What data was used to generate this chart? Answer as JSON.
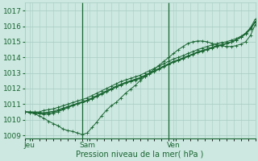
{
  "xlabel": "Pression niveau de la mer( hPa )",
  "bg_color": "#cce8e0",
  "grid_color": "#a8ccC4",
  "line_color": "#1a6632",
  "ylim": [
    1008.8,
    1017.5
  ],
  "xlim": [
    0,
    96
  ],
  "yticks": [
    1009,
    1010,
    1011,
    1012,
    1013,
    1014,
    1015,
    1016,
    1017
  ],
  "xtick_positions": [
    2,
    26,
    62
  ],
  "xtick_labels": [
    "Jeu",
    "Sam",
    "Ven"
  ],
  "vline_positions": [
    24,
    60
  ],
  "x_hours": [
    0,
    2,
    4,
    6,
    8,
    10,
    12,
    14,
    16,
    18,
    20,
    22,
    24,
    26,
    28,
    30,
    32,
    34,
    36,
    38,
    40,
    42,
    44,
    46,
    48,
    50,
    52,
    54,
    56,
    58,
    60,
    62,
    64,
    66,
    68,
    70,
    72,
    74,
    76,
    78,
    80,
    82,
    84,
    86,
    88,
    90,
    92,
    94,
    96
  ],
  "dip_line": [
    1010.5,
    1010.45,
    1010.38,
    1010.25,
    1010.1,
    1009.9,
    1009.75,
    1009.6,
    1009.4,
    1009.3,
    1009.25,
    1009.15,
    1009.05,
    1009.15,
    1009.5,
    1009.85,
    1010.25,
    1010.6,
    1010.9,
    1011.1,
    1011.4,
    1011.7,
    1011.95,
    1012.2,
    1012.5,
    1012.75,
    1013.0,
    1013.25,
    1013.5,
    1013.75,
    1014.0,
    1014.25,
    1014.5,
    1014.7,
    1014.9,
    1015.0,
    1015.05,
    1015.05,
    1015.0,
    1014.9,
    1014.8,
    1014.75,
    1014.7,
    1014.7,
    1014.75,
    1014.85,
    1015.0,
    1015.4,
    1016.1
  ],
  "straight1": [
    1010.5,
    1010.5,
    1010.5,
    1010.5,
    1010.6,
    1010.65,
    1010.7,
    1010.8,
    1010.9,
    1011.0,
    1011.1,
    1011.2,
    1011.3,
    1011.4,
    1011.55,
    1011.7,
    1011.85,
    1012.0,
    1012.15,
    1012.3,
    1012.45,
    1012.55,
    1012.65,
    1012.75,
    1012.85,
    1013.0,
    1013.15,
    1013.3,
    1013.45,
    1013.6,
    1013.75,
    1013.9,
    1014.0,
    1014.12,
    1014.25,
    1014.37,
    1014.5,
    1014.6,
    1014.7,
    1014.8,
    1014.88,
    1014.95,
    1015.0,
    1015.1,
    1015.2,
    1015.35,
    1015.55,
    1015.85,
    1016.3
  ],
  "straight2": [
    1010.5,
    1010.5,
    1010.48,
    1010.45,
    1010.45,
    1010.5,
    1010.55,
    1010.65,
    1010.75,
    1010.85,
    1010.95,
    1011.05,
    1011.15,
    1011.25,
    1011.4,
    1011.55,
    1011.7,
    1011.85,
    1012.0,
    1012.15,
    1012.28,
    1012.4,
    1012.5,
    1012.6,
    1012.7,
    1012.85,
    1013.0,
    1013.15,
    1013.3,
    1013.45,
    1013.6,
    1013.75,
    1013.85,
    1013.98,
    1014.1,
    1014.22,
    1014.35,
    1014.45,
    1014.55,
    1014.65,
    1014.75,
    1014.82,
    1014.9,
    1015.0,
    1015.12,
    1015.28,
    1015.5,
    1015.8,
    1016.25
  ],
  "straight3": [
    1010.5,
    1010.48,
    1010.45,
    1010.42,
    1010.4,
    1010.42,
    1010.48,
    1010.58,
    1010.7,
    1010.82,
    1010.94,
    1011.04,
    1011.14,
    1011.24,
    1011.38,
    1011.52,
    1011.67,
    1011.82,
    1011.97,
    1012.12,
    1012.25,
    1012.37,
    1012.47,
    1012.57,
    1012.67,
    1012.82,
    1012.97,
    1013.12,
    1013.27,
    1013.42,
    1013.57,
    1013.72,
    1013.82,
    1013.95,
    1014.08,
    1014.2,
    1014.32,
    1014.42,
    1014.52,
    1014.62,
    1014.72,
    1014.8,
    1014.88,
    1014.98,
    1015.1,
    1015.28,
    1015.5,
    1015.82,
    1016.28
  ],
  "straight4": [
    1010.5,
    1010.47,
    1010.42,
    1010.38,
    1010.35,
    1010.37,
    1010.42,
    1010.52,
    1010.65,
    1010.78,
    1010.9,
    1011.0,
    1011.1,
    1011.2,
    1011.34,
    1011.48,
    1011.63,
    1011.78,
    1011.93,
    1012.08,
    1012.22,
    1012.34,
    1012.44,
    1012.54,
    1012.64,
    1012.79,
    1012.94,
    1013.09,
    1013.24,
    1013.39,
    1013.54,
    1013.69,
    1013.79,
    1013.92,
    1014.05,
    1014.18,
    1014.3,
    1014.4,
    1014.5,
    1014.6,
    1014.7,
    1014.78,
    1014.87,
    1014.97,
    1015.1,
    1015.3,
    1015.55,
    1015.9,
    1016.45
  ]
}
